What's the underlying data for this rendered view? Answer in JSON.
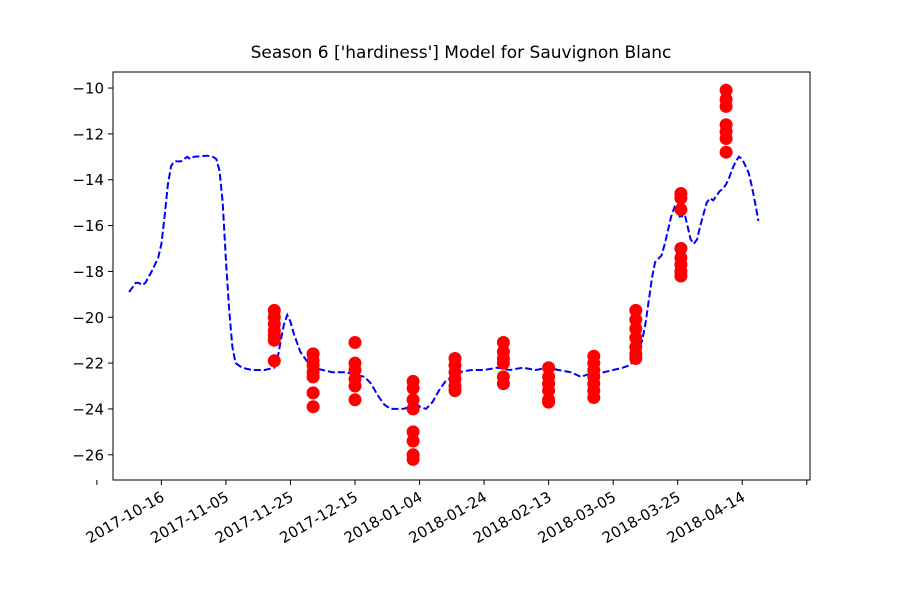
{
  "chart_data": {
    "type": "scatter",
    "title": "Season 6 ['hardiness'] Model for Sauvignon Blanc",
    "xlabel": "",
    "ylabel": "",
    "x_is_date": true,
    "xlim": [
      "2017-10-01",
      "2018-05-05"
    ],
    "ylim": [
      -27.1,
      -9.3
    ],
    "x_ticks": [
      "2017-10-16",
      "2017-11-05",
      "2017-11-25",
      "2017-12-15",
      "2018-01-04",
      "2018-01-24",
      "2018-02-13",
      "2018-03-05",
      "2018-03-25",
      "2018-04-14"
    ],
    "y_ticks": [
      -10,
      -12,
      -14,
      -16,
      -18,
      -20,
      -22,
      -24,
      -26
    ],
    "y_tick_labels": [
      "−10",
      "−12",
      "−14",
      "−16",
      "−18",
      "−20",
      "−22",
      "−24",
      "−26"
    ],
    "grid": false,
    "colors": {
      "model": "#0000ff",
      "observed": "#ff0000",
      "frame": "#000000"
    },
    "series": [
      {
        "style": "dashed-line",
        "color": "#0000ff",
        "points": [
          [
            "2017-10-06",
            -18.9
          ],
          [
            "2017-10-07",
            -18.7
          ],
          [
            "2017-10-08",
            -18.5
          ],
          [
            "2017-10-09",
            -18.5
          ],
          [
            "2017-10-10",
            -18.6
          ],
          [
            "2017-10-11",
            -18.5
          ],
          [
            "2017-10-13",
            -18.0
          ],
          [
            "2017-10-15",
            -17.4
          ],
          [
            "2017-10-16",
            -16.8
          ],
          [
            "2017-10-17",
            -15.6
          ],
          [
            "2017-10-18",
            -14.2
          ],
          [
            "2017-10-19",
            -13.4
          ],
          [
            "2017-10-20",
            -13.2
          ],
          [
            "2017-10-22",
            -13.2
          ],
          [
            "2017-10-24",
            -13.0
          ],
          [
            "2017-10-25",
            -13.1
          ],
          [
            "2017-10-26",
            -13.0
          ],
          [
            "2017-10-30",
            -12.95
          ],
          [
            "2017-11-01",
            -13.0
          ],
          [
            "2017-11-02",
            -13.1
          ],
          [
            "2017-11-03",
            -13.6
          ],
          [
            "2017-11-04",
            -15.0
          ],
          [
            "2017-11-05",
            -17.5
          ],
          [
            "2017-11-06",
            -19.7
          ],
          [
            "2017-11-07",
            -21.3
          ],
          [
            "2017-11-08",
            -22.0
          ],
          [
            "2017-11-10",
            -22.2
          ],
          [
            "2017-11-13",
            -22.3
          ],
          [
            "2017-11-17",
            -22.3
          ],
          [
            "2017-11-20",
            -22.2
          ],
          [
            "2017-11-21",
            -21.8
          ],
          [
            "2017-11-22",
            -21.0
          ],
          [
            "2017-11-23",
            -20.3
          ],
          [
            "2017-11-24",
            -19.9
          ],
          [
            "2017-11-25",
            -20.2
          ],
          [
            "2017-11-26",
            -20.7
          ],
          [
            "2017-11-28",
            -21.5
          ],
          [
            "2017-11-30",
            -21.9
          ],
          [
            "2017-12-02",
            -22.2
          ],
          [
            "2017-12-05",
            -22.3
          ],
          [
            "2017-12-08",
            -22.4
          ],
          [
            "2017-12-12",
            -22.4
          ],
          [
            "2017-12-15",
            -22.5
          ],
          [
            "2017-12-18",
            -22.6
          ],
          [
            "2017-12-20",
            -22.9
          ],
          [
            "2017-12-22",
            -23.4
          ],
          [
            "2017-12-24",
            -23.8
          ],
          [
            "2017-12-26",
            -24.0
          ],
          [
            "2017-12-28",
            -24.0
          ],
          [
            "2017-12-30",
            -24.0
          ],
          [
            "2018-01-01",
            -23.9
          ],
          [
            "2018-01-02",
            -23.6
          ],
          [
            "2018-01-04",
            -23.9
          ],
          [
            "2018-01-06",
            -24.0
          ],
          [
            "2018-01-08",
            -23.7
          ],
          [
            "2018-01-10",
            -23.2
          ],
          [
            "2018-01-12",
            -22.8
          ],
          [
            "2018-01-14",
            -22.6
          ],
          [
            "2018-01-16",
            -22.4
          ],
          [
            "2018-01-20",
            -22.3
          ],
          [
            "2018-01-24",
            -22.3
          ],
          [
            "2018-01-28",
            -22.2
          ],
          [
            "2018-02-01",
            -22.3
          ],
          [
            "2018-02-05",
            -22.2
          ],
          [
            "2018-02-09",
            -22.3
          ],
          [
            "2018-02-13",
            -22.2
          ],
          [
            "2018-02-16",
            -22.3
          ],
          [
            "2018-02-20",
            -22.4
          ],
          [
            "2018-02-23",
            -22.6
          ],
          [
            "2018-02-25",
            -22.5
          ],
          [
            "2018-02-28",
            -22.5
          ],
          [
            "2018-03-02",
            -22.4
          ],
          [
            "2018-03-05",
            -22.3
          ],
          [
            "2018-03-08",
            -22.2
          ],
          [
            "2018-03-10",
            -22.1
          ],
          [
            "2018-03-12",
            -21.8
          ],
          [
            "2018-03-14",
            -21.0
          ],
          [
            "2018-03-15",
            -20.3
          ],
          [
            "2018-03-16",
            -19.3
          ],
          [
            "2018-03-17",
            -18.3
          ],
          [
            "2018-03-18",
            -17.6
          ],
          [
            "2018-03-20",
            -17.3
          ],
          [
            "2018-03-21",
            -16.8
          ],
          [
            "2018-03-22",
            -16.2
          ],
          [
            "2018-03-23",
            -15.6
          ],
          [
            "2018-03-24",
            -15.2
          ],
          [
            "2018-03-25",
            -15.4
          ],
          [
            "2018-03-26",
            -15.7
          ],
          [
            "2018-03-27",
            -15.4
          ],
          [
            "2018-03-28",
            -16.0
          ],
          [
            "2018-03-29",
            -16.6
          ],
          [
            "2018-03-30",
            -16.8
          ],
          [
            "2018-03-31",
            -16.6
          ],
          [
            "2018-04-01",
            -16.0
          ],
          [
            "2018-04-02",
            -15.5
          ],
          [
            "2018-04-03",
            -15.0
          ],
          [
            "2018-04-04",
            -14.8
          ],
          [
            "2018-04-05",
            -14.9
          ],
          [
            "2018-04-06",
            -14.7
          ],
          [
            "2018-04-07",
            -14.5
          ],
          [
            "2018-04-08",
            -14.4
          ],
          [
            "2018-04-09",
            -14.2
          ],
          [
            "2018-04-10",
            -13.9
          ],
          [
            "2018-04-11",
            -13.5
          ],
          [
            "2018-04-12",
            -13.2
          ],
          [
            "2018-04-13",
            -13.0
          ],
          [
            "2018-04-14",
            -13.1
          ],
          [
            "2018-04-15",
            -13.4
          ],
          [
            "2018-04-16",
            -13.7
          ],
          [
            "2018-04-17",
            -14.3
          ],
          [
            "2018-04-18",
            -15.0
          ],
          [
            "2018-04-19",
            -15.8
          ]
        ]
      },
      {
        "style": "markers",
        "color": "#ff0000",
        "points": [
          [
            "2017-11-20",
            -19.7
          ],
          [
            "2017-11-20",
            -20.0
          ],
          [
            "2017-11-20",
            -20.3
          ],
          [
            "2017-11-20",
            -20.6
          ],
          [
            "2017-11-20",
            -20.8
          ],
          [
            "2017-11-20",
            -21.0
          ],
          [
            "2017-11-20",
            -21.9
          ],
          [
            "2017-12-02",
            -21.6
          ],
          [
            "2017-12-02",
            -21.9
          ],
          [
            "2017-12-02",
            -22.1
          ],
          [
            "2017-12-02",
            -22.4
          ],
          [
            "2017-12-02",
            -22.6
          ],
          [
            "2017-12-02",
            -23.3
          ],
          [
            "2017-12-02",
            -23.9
          ],
          [
            "2017-12-15",
            -21.1
          ],
          [
            "2017-12-15",
            -22.0
          ],
          [
            "2017-12-15",
            -22.3
          ],
          [
            "2017-12-15",
            -22.7
          ],
          [
            "2017-12-15",
            -23.0
          ],
          [
            "2017-12-15",
            -23.6
          ],
          [
            "2018-01-02",
            -22.8
          ],
          [
            "2018-01-02",
            -23.1
          ],
          [
            "2018-01-02",
            -23.6
          ],
          [
            "2018-01-02",
            -24.0
          ],
          [
            "2018-01-02",
            -25.0
          ],
          [
            "2018-01-02",
            -25.4
          ],
          [
            "2018-01-02",
            -26.0
          ],
          [
            "2018-01-02",
            -26.2
          ],
          [
            "2018-01-15",
            -21.8
          ],
          [
            "2018-01-15",
            -22.1
          ],
          [
            "2018-01-15",
            -22.4
          ],
          [
            "2018-01-15",
            -22.7
          ],
          [
            "2018-01-15",
            -23.0
          ],
          [
            "2018-01-15",
            -23.2
          ],
          [
            "2018-01-30",
            -21.1
          ],
          [
            "2018-01-30",
            -21.5
          ],
          [
            "2018-01-30",
            -21.8
          ],
          [
            "2018-01-30",
            -22.0
          ],
          [
            "2018-01-30",
            -22.6
          ],
          [
            "2018-01-30",
            -22.9
          ],
          [
            "2018-02-13",
            -22.2
          ],
          [
            "2018-02-13",
            -22.6
          ],
          [
            "2018-02-13",
            -22.9
          ],
          [
            "2018-02-13",
            -23.2
          ],
          [
            "2018-02-13",
            -23.6
          ],
          [
            "2018-02-13",
            -23.7
          ],
          [
            "2018-02-27",
            -21.7
          ],
          [
            "2018-02-27",
            -22.0
          ],
          [
            "2018-02-27",
            -22.3
          ],
          [
            "2018-02-27",
            -22.6
          ],
          [
            "2018-02-27",
            -22.9
          ],
          [
            "2018-02-27",
            -23.2
          ],
          [
            "2018-02-27",
            -23.5
          ],
          [
            "2018-03-12",
            -19.7
          ],
          [
            "2018-03-12",
            -20.1
          ],
          [
            "2018-03-12",
            -20.5
          ],
          [
            "2018-03-12",
            -20.9
          ],
          [
            "2018-03-12",
            -21.3
          ],
          [
            "2018-03-12",
            -21.6
          ],
          [
            "2018-03-12",
            -21.8
          ],
          [
            "2018-03-26",
            -14.6
          ],
          [
            "2018-03-26",
            -14.8
          ],
          [
            "2018-03-26",
            -15.3
          ],
          [
            "2018-03-26",
            -17.0
          ],
          [
            "2018-03-26",
            -17.4
          ],
          [
            "2018-03-26",
            -17.7
          ],
          [
            "2018-03-26",
            -18.0
          ],
          [
            "2018-03-26",
            -18.2
          ],
          [
            "2018-04-09",
            -10.1
          ],
          [
            "2018-04-09",
            -10.5
          ],
          [
            "2018-04-09",
            -10.8
          ],
          [
            "2018-04-09",
            -11.6
          ],
          [
            "2018-04-09",
            -11.9
          ],
          [
            "2018-04-09",
            -12.2
          ],
          [
            "2018-04-09",
            -12.8
          ]
        ]
      }
    ]
  }
}
